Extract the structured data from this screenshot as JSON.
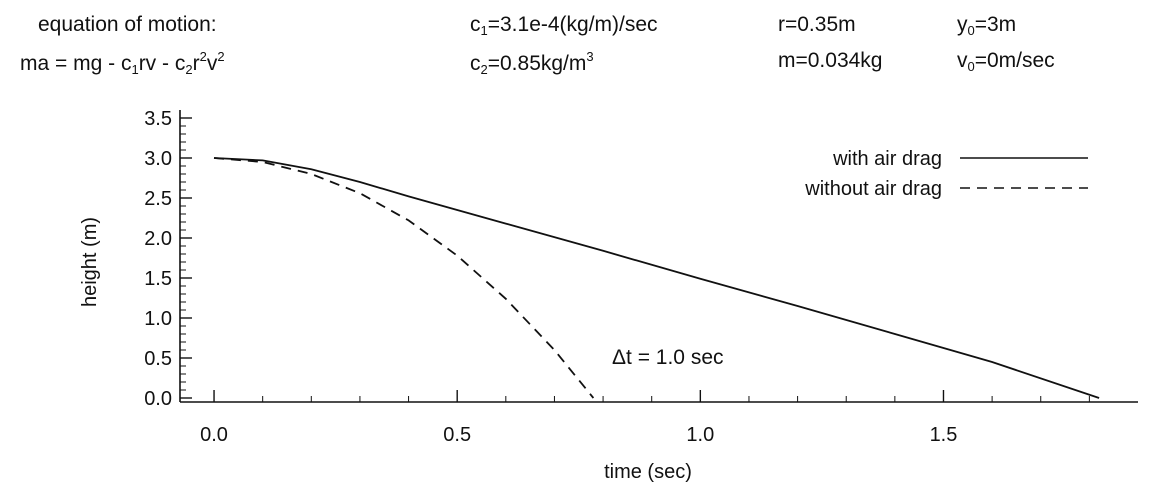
{
  "header": {
    "eq_title": "equation of motion:",
    "eq": [
      "ma = mg - c",
      "1",
      "rv - c",
      "2",
      "r",
      "2",
      "v",
      "2"
    ],
    "c1": [
      "c",
      "1",
      "=3.1e-4(kg/m)/sec"
    ],
    "c2": [
      "c",
      "2",
      "=0.85kg/m",
      "3"
    ],
    "r": "r=0.35m",
    "m": "m=0.034kg",
    "y0": [
      "y",
      "0",
      "=3m"
    ],
    "v0": [
      "v",
      "0",
      "=0m/sec"
    ]
  },
  "chart_data": {
    "type": "line",
    "xlabel": "time (sec)",
    "ylabel": "height (m)",
    "xlim": [
      -0.07,
      1.9
    ],
    "ylim": [
      -0.05,
      3.6
    ],
    "xticks": [
      0.0,
      0.5,
      1.0,
      1.5
    ],
    "xtick_labels": [
      "0.0",
      "0.5",
      "1.0",
      "1.5"
    ],
    "yticks": [
      0.0,
      0.5,
      1.0,
      1.5,
      2.0,
      2.5,
      3.0,
      3.5
    ],
    "ytick_labels": [
      "0.0",
      "0.5",
      "1.0",
      "1.5",
      "2.0",
      "2.5",
      "3.0",
      "3.5"
    ],
    "legend_position": "top-right",
    "annotation": "Δt = 1.0 sec",
    "series": [
      {
        "name": "with air drag",
        "style": "solid",
        "x": [
          0.0,
          0.1,
          0.2,
          0.3,
          0.4,
          0.6,
          0.8,
          1.0,
          1.2,
          1.4,
          1.6,
          1.82
        ],
        "y": [
          3.0,
          2.97,
          2.86,
          2.7,
          2.52,
          2.18,
          1.84,
          1.49,
          1.15,
          0.8,
          0.45,
          0.0
        ]
      },
      {
        "name": "without air drag",
        "style": "dashed",
        "x": [
          0.0,
          0.1,
          0.2,
          0.3,
          0.4,
          0.5,
          0.6,
          0.7,
          0.78
        ],
        "y": [
          3.0,
          2.95,
          2.8,
          2.56,
          2.22,
          1.78,
          1.24,
          0.6,
          0.0
        ]
      }
    ]
  }
}
